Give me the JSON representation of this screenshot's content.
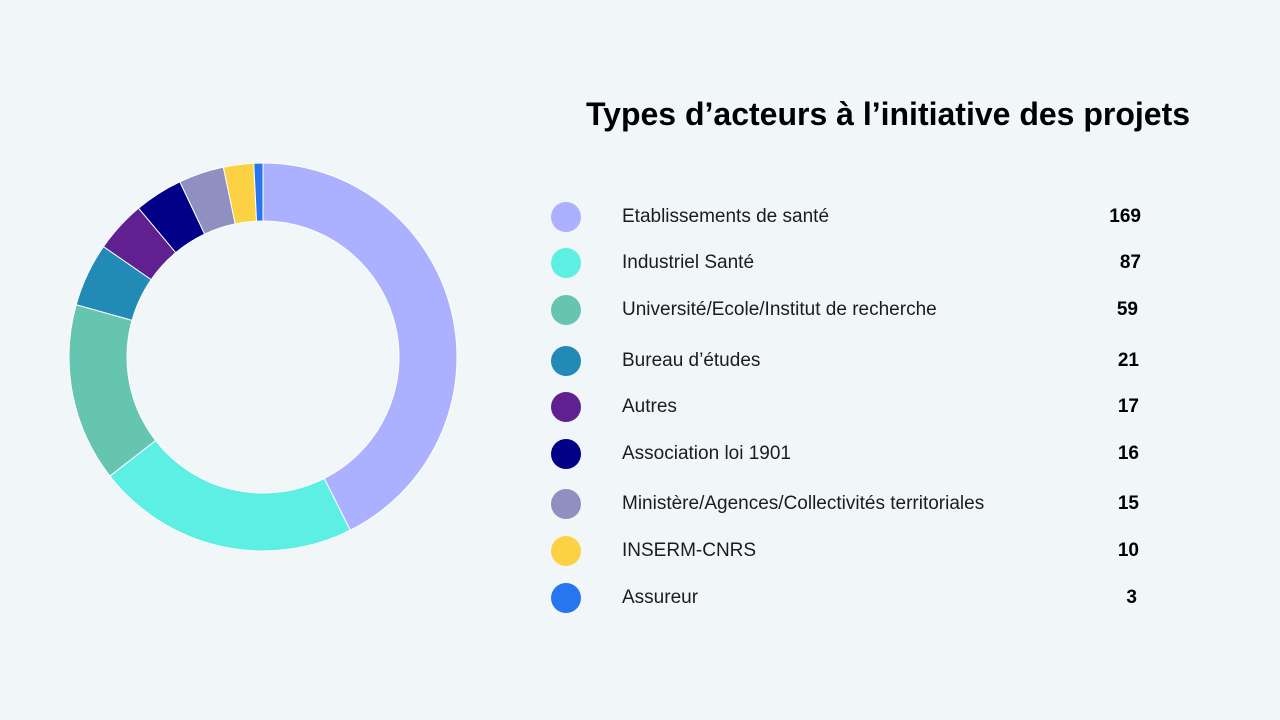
{
  "chart_data": {
    "type": "pie",
    "variant": "donut",
    "title": "Types d’acteurs à l’initiative des projets",
    "categories": [
      "Etablissements de santé",
      "Industriel Santé",
      "Université/Ecole/Institut de recherche",
      "Bureau d’études",
      "Autres",
      "Association loi 1901",
      "Ministère/Agences/Collectivités territoriales",
      "INSERM-CNRS",
      "Assureur"
    ],
    "values": [
      169,
      87,
      59,
      21,
      17,
      16,
      15,
      10,
      3
    ],
    "colors": [
      "#abb0ff",
      "#5eefe4",
      "#66c5b0",
      "#218bb6",
      "#61208f",
      "#010087",
      "#8f8fc2",
      "#fdd144",
      "#2776ef"
    ],
    "legend_position": "right"
  }
}
